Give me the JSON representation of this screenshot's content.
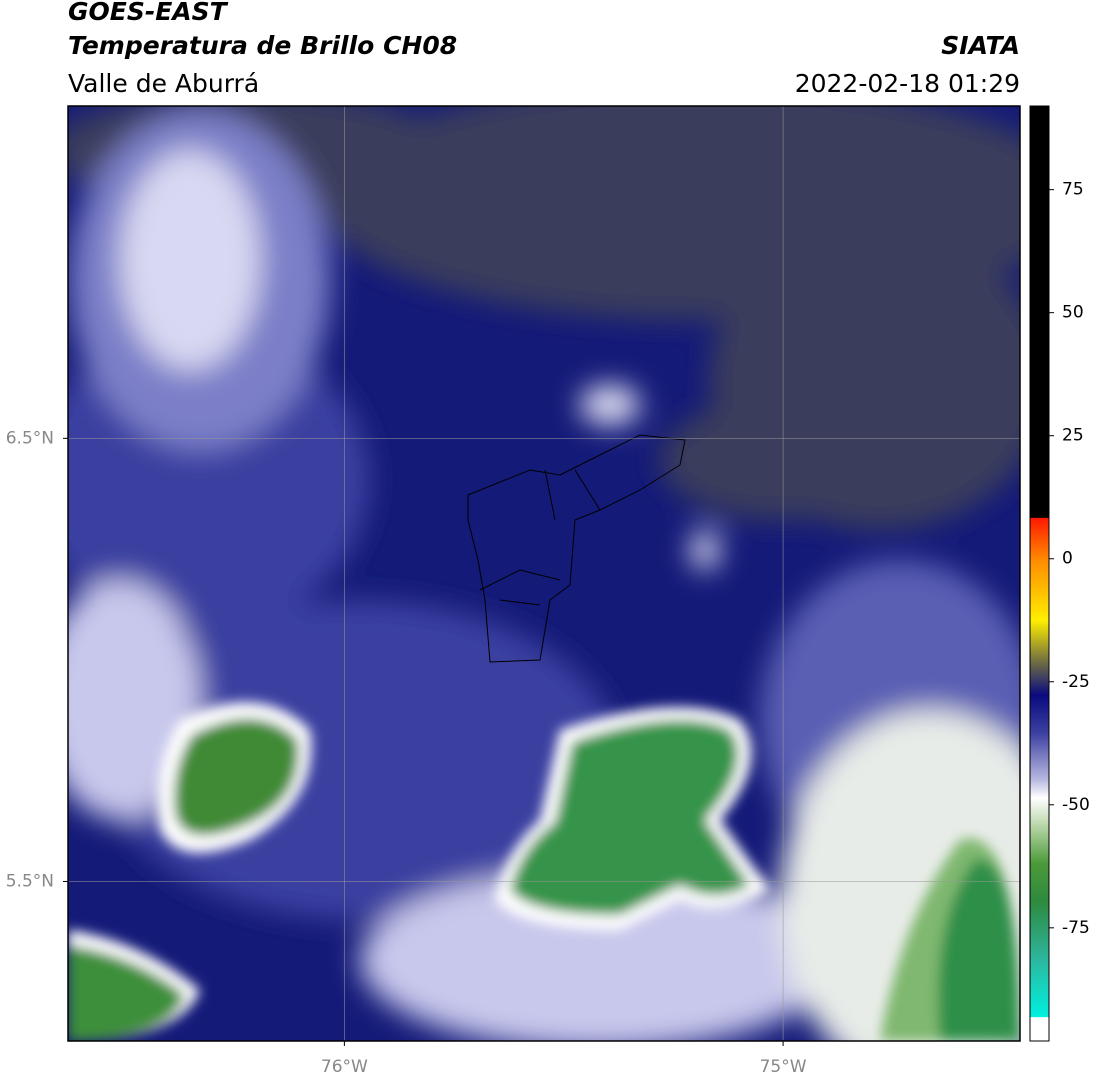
{
  "header": {
    "title": "GOES-EAST",
    "subtitle": "Temperatura de Brillo CH08",
    "region": "Valle de Aburrá",
    "source": "SIATA",
    "datetime": "2022-02-18 01:29"
  },
  "map": {
    "xlim": [
      -76.63,
      -74.46
    ],
    "ylim": [
      5.14,
      7.25
    ],
    "xticks": [
      {
        "value": -76,
        "label": "76°W"
      },
      {
        "value": -75,
        "label": "75°W"
      }
    ],
    "yticks": [
      {
        "value": 6.5,
        "label": "6.5°N"
      },
      {
        "value": 5.5,
        "label": "5.5°N"
      }
    ],
    "grid": true
  },
  "colorbar": {
    "lim": [
      -98,
      92
    ],
    "ticks": [
      -75,
      -50,
      -25,
      0,
      25,
      50,
      75
    ]
  }
}
